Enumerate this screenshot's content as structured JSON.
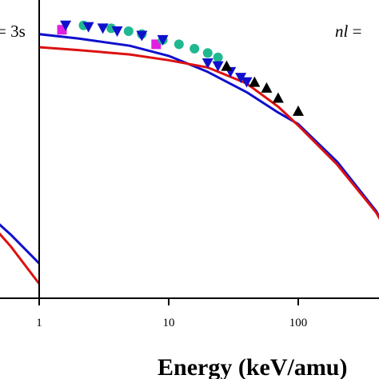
{
  "chart_data": {
    "type": "line",
    "xlabel": "Energy (keV/amu)",
    "xscale": "log",
    "x_ticks": [
      "1",
      "10",
      "100"
    ],
    "panels": [
      {
        "label_prefix": "",
        "label_text": "= 3s",
        "series": [
          {
            "color": "#1010cc",
            "x": [
              0.38,
              0.6,
              1.0
            ],
            "y": [
              0.3,
              0.22,
              0.12
            ]
          },
          {
            "color": "#dd1111",
            "x": [
              0.38,
              0.6,
              1.0
            ],
            "y": [
              0.28,
              0.18,
              0.05
            ]
          }
        ]
      },
      {
        "label_prefix": "nl",
        "label_text": " =",
        "series": [
          {
            "color": "#1010cc",
            "x": [
              1,
              2,
              5,
              10,
              20,
              40,
              70,
              100,
              200,
              400,
              650
            ],
            "y": [
              0.91,
              0.895,
              0.87,
              0.835,
              0.78,
              0.71,
              0.64,
              0.6,
              0.47,
              0.3,
              0.12
            ]
          },
          {
            "color": "#dd1111",
            "x": [
              1,
              2,
              5,
              10,
              20,
              40,
              70,
              100,
              200,
              400,
              650
            ],
            "y": [
              0.865,
              0.855,
              0.84,
              0.82,
              0.795,
              0.74,
              0.66,
              0.595,
              0.46,
              0.295,
              0.13
            ]
          }
        ],
        "markers": [
          {
            "shape": "square",
            "color": "#e020e0",
            "x": [
              1.5,
              8.0
            ],
            "y": [
              0.925,
              0.875
            ]
          },
          {
            "shape": "circle",
            "color": "#20b890",
            "x": [
              2.2,
              3.6,
              4.9,
              6.2,
              9.0,
              12.0,
              15.8,
              20.0,
              24.0
            ],
            "y": [
              0.94,
              0.93,
              0.92,
              0.91,
              0.89,
              0.875,
              0.86,
              0.845,
              0.83
            ]
          },
          {
            "shape": "triangle-down",
            "color": "#1010cc",
            "x": [
              1.6,
              2.4,
              3.1,
              4.0,
              6.2,
              9.0,
              20.0,
              24.0,
              30.0,
              36.0,
              40.0
            ],
            "y": [
              0.94,
              0.935,
              0.93,
              0.92,
              0.905,
              0.89,
              0.81,
              0.8,
              0.78,
              0.76,
              0.745
            ]
          },
          {
            "shape": "triangle-up",
            "color": "#000000",
            "x": [
              28.0,
              46.0,
              57.0,
              70.0,
              100.0
            ],
            "y": [
              0.8,
              0.745,
              0.725,
              0.69,
              0.645
            ]
          }
        ]
      }
    ]
  }
}
